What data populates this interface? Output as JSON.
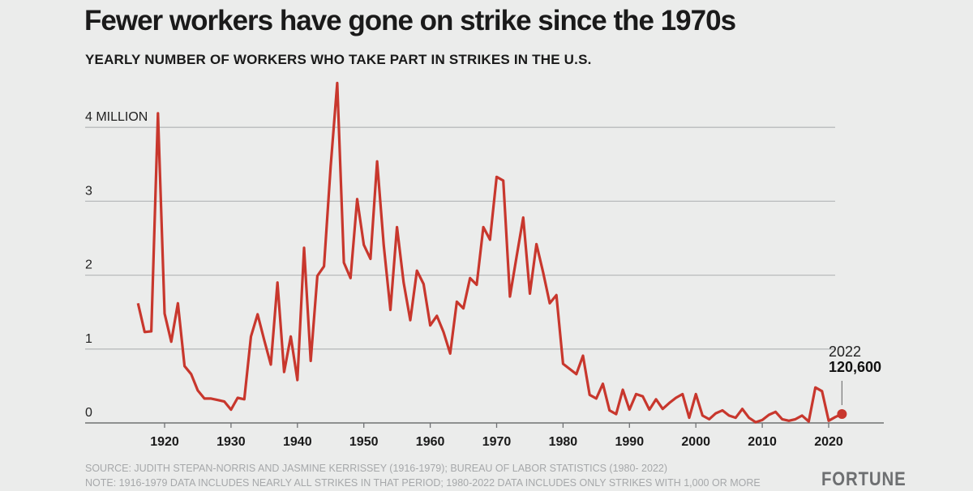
{
  "chart_data": {
    "type": "line",
    "title": "Fewer workers have gone on strike since the 1970s",
    "subtitle": "YEARLY NUMBER OF WORKERS WHO TAKE PART IN STRIKES IN THE U.S.",
    "xlabel": "",
    "ylabel": "",
    "xlim": [
      1912,
      2028
    ],
    "ylim": [
      0,
      4.7
    ],
    "y_unit": "million workers",
    "y_ticks": [
      {
        "value": 0,
        "label": "0"
      },
      {
        "value": 1,
        "label": "1"
      },
      {
        "value": 2,
        "label": "2"
      },
      {
        "value": 3,
        "label": "3"
      },
      {
        "value": 4,
        "label": "4 MILLION"
      }
    ],
    "x_ticks": [
      1920,
      1930,
      1940,
      1950,
      1960,
      1970,
      1980,
      1990,
      2000,
      2010,
      2020
    ],
    "x_tick_labels": [
      "1920",
      "1930",
      "1940",
      "1950",
      "1960",
      "1970",
      "1980",
      "1990",
      "2000",
      "2010",
      "2020"
    ],
    "grid": true,
    "line_color": "#c8372d",
    "series": [
      {
        "name": "Workers on strike",
        "x": [
          1916,
          1917,
          1918,
          1919,
          1920,
          1921,
          1922,
          1923,
          1924,
          1925,
          1926,
          1927,
          1928,
          1929,
          1930,
          1931,
          1932,
          1933,
          1934,
          1935,
          1936,
          1937,
          1938,
          1939,
          1940,
          1941,
          1942,
          1943,
          1944,
          1945,
          1946,
          1947,
          1948,
          1949,
          1950,
          1951,
          1952,
          1953,
          1954,
          1955,
          1956,
          1957,
          1958,
          1959,
          1960,
          1961,
          1962,
          1963,
          1964,
          1965,
          1966,
          1967,
          1968,
          1969,
          1970,
          1971,
          1972,
          1973,
          1974,
          1975,
          1976,
          1977,
          1978,
          1979,
          1980,
          1981,
          1982,
          1983,
          1984,
          1985,
          1986,
          1987,
          1988,
          1989,
          1990,
          1991,
          1992,
          1993,
          1994,
          1995,
          1996,
          1997,
          1998,
          1999,
          2000,
          2001,
          2002,
          2003,
          2004,
          2005,
          2006,
          2007,
          2008,
          2009,
          2010,
          2011,
          2012,
          2013,
          2014,
          2015,
          2016,
          2017,
          2018,
          2019,
          2020,
          2021,
          2022
        ],
        "values": [
          1.62,
          1.23,
          1.24,
          4.19,
          1.48,
          1.1,
          1.62,
          0.77,
          0.66,
          0.44,
          0.33,
          0.33,
          0.31,
          0.29,
          0.18,
          0.34,
          0.32,
          1.17,
          1.47,
          1.12,
          0.79,
          1.9,
          0.69,
          1.17,
          0.58,
          2.37,
          0.84,
          1.99,
          2.12,
          3.47,
          4.6,
          2.17,
          1.96,
          3.03,
          2.41,
          2.22,
          3.54,
          2.4,
          1.53,
          2.65,
          1.9,
          1.39,
          2.06,
          1.88,
          1.32,
          1.45,
          1.23,
          0.94,
          1.64,
          1.55,
          1.96,
          1.87,
          2.65,
          2.48,
          3.33,
          3.28,
          1.71,
          2.25,
          2.78,
          1.75,
          2.42,
          2.04,
          1.62,
          1.73,
          0.8,
          0.73,
          0.66,
          0.91,
          0.38,
          0.33,
          0.53,
          0.17,
          0.12,
          0.45,
          0.18,
          0.39,
          0.36,
          0.18,
          0.32,
          0.19,
          0.27,
          0.34,
          0.39,
          0.07,
          0.39,
          0.1,
          0.05,
          0.13,
          0.17,
          0.1,
          0.07,
          0.19,
          0.07,
          0.01,
          0.04,
          0.11,
          0.15,
          0.05,
          0.03,
          0.05,
          0.1,
          0.02,
          0.48,
          0.43,
          0.03,
          0.08,
          0.1206
        ]
      }
    ],
    "annotation": {
      "year": "2022",
      "value": "120,600"
    }
  },
  "footer": {
    "source": "SOURCE: JUDITH STEPAN-NORRIS AND JASMINE KERRISSEY (1916-1979); BUREAU OF LABOR STATISTICS (1980- 2022)",
    "note": "NOTE: 1916-1979 DATA INCLUDES NEARLY ALL STRIKES IN THAT PERIOD; 1980-2022 DATA INCLUDES ONLY STRIKES WITH 1,000 OR MORE",
    "brand": "FORTUNE"
  }
}
